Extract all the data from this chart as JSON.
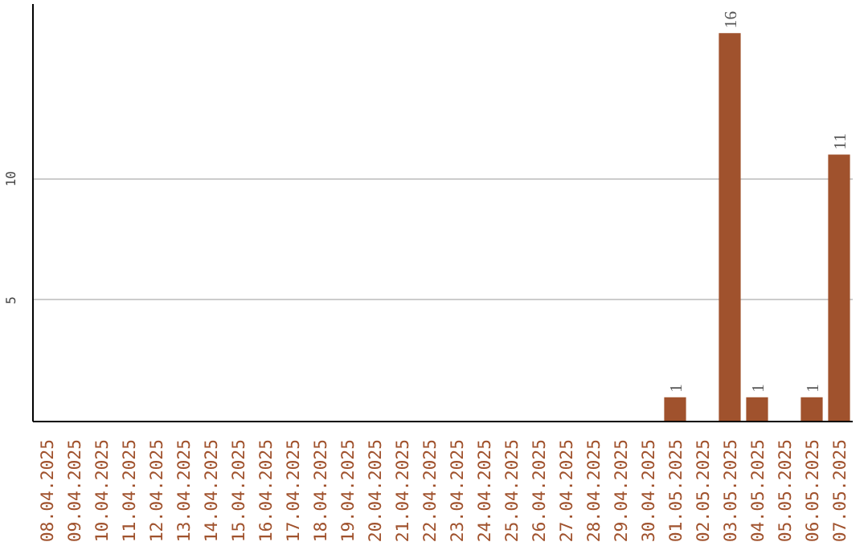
{
  "chart_data": {
    "type": "bar",
    "categories": [
      "08.04.2025",
      "09.04.2025",
      "10.04.2025",
      "11.04.2025",
      "12.04.2025",
      "13.04.2025",
      "14.04.2025",
      "15.04.2025",
      "16.04.2025",
      "17.04.2025",
      "18.04.2025",
      "19.04.2025",
      "20.04.2025",
      "21.04.2025",
      "22.04.2025",
      "23.04.2025",
      "24.04.2025",
      "25.04.2025",
      "26.04.2025",
      "27.04.2025",
      "28.04.2025",
      "29.04.2025",
      "30.04.2025",
      "01.05.2025",
      "02.05.2025",
      "03.05.2025",
      "04.05.2025",
      "05.05.2025",
      "06.05.2025",
      "07.05.2025"
    ],
    "values": [
      0,
      0,
      0,
      0,
      0,
      0,
      0,
      0,
      0,
      0,
      0,
      0,
      0,
      0,
      0,
      0,
      0,
      0,
      0,
      0,
      0,
      0,
      0,
      1,
      0,
      16,
      1,
      0,
      1,
      11
    ],
    "value_labels": [
      null,
      null,
      null,
      null,
      null,
      null,
      null,
      null,
      null,
      null,
      null,
      null,
      null,
      null,
      null,
      null,
      null,
      null,
      null,
      null,
      null,
      null,
      null,
      "1",
      null,
      "16",
      "1",
      null,
      "1",
      "11"
    ],
    "color": "#a0522d",
    "ylim": [
      0,
      17.2
    ],
    "yticks": [
      5,
      10
    ],
    "grid": "y"
  }
}
